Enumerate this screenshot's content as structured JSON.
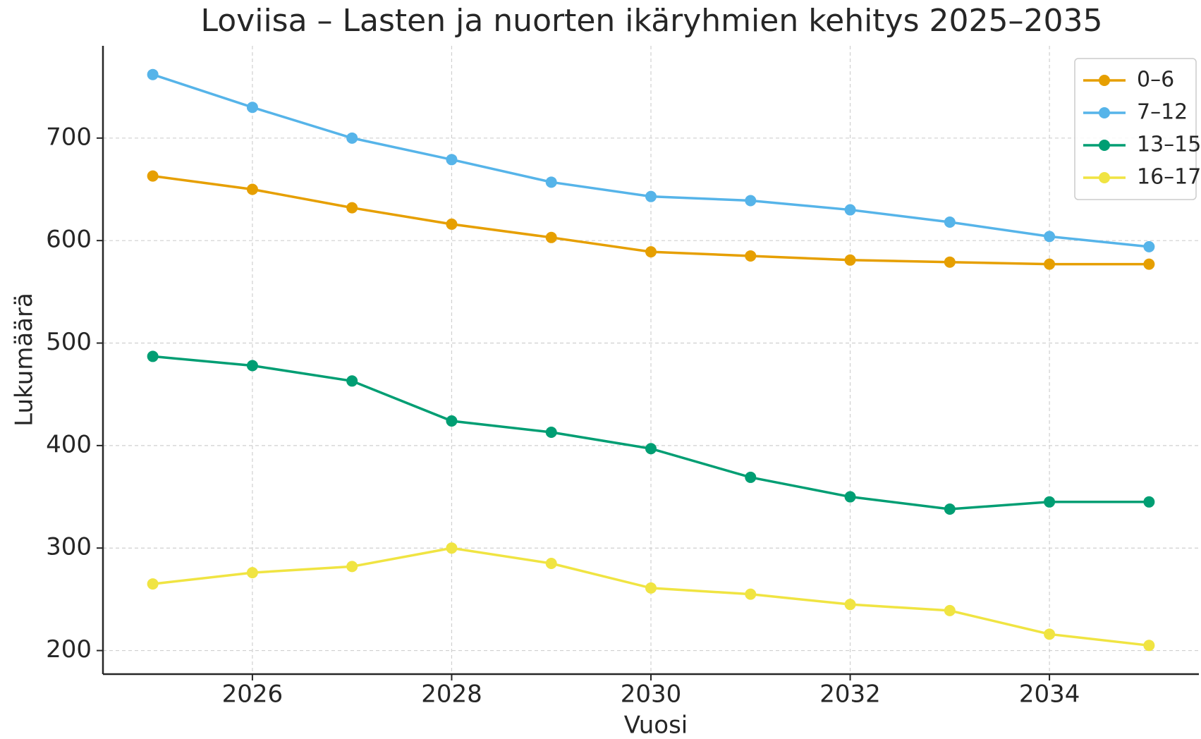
{
  "chart_data": {
    "type": "line",
    "title": "Loviisa – Lasten ja nuorten ikäryhmien kehitys 2025–2035",
    "x_label": "Vuosi",
    "y_label": "Lukumäärä",
    "x": [
      2025,
      2026,
      2027,
      2028,
      2029,
      2030,
      2031,
      2032,
      2033,
      2034,
      2035
    ],
    "series": [
      {
        "name": "0–6",
        "color": "#e69f00",
        "values": [
          663,
          650,
          632,
          616,
          603,
          589,
          585,
          581,
          579,
          577,
          577
        ]
      },
      {
        "name": "7–12",
        "color": "#56b4e9",
        "values": [
          762,
          730,
          700,
          679,
          657,
          643,
          639,
          630,
          618,
          604,
          594
        ]
      },
      {
        "name": "13–15",
        "color": "#009e73",
        "values": [
          487,
          478,
          463,
          424,
          413,
          397,
          369,
          350,
          338,
          345,
          345
        ]
      },
      {
        "name": "16–17",
        "color": "#f0e442",
        "values": [
          265,
          276,
          282,
          300,
          285,
          261,
          255,
          245,
          239,
          216,
          205
        ]
      }
    ],
    "xlim": [
      2024.5,
      2035.5
    ],
    "xticks": [
      2026,
      2028,
      2030,
      2032,
      2034
    ],
    "ylim": [
      177,
      790
    ],
    "yticks": [
      200,
      300,
      400,
      500,
      600,
      700
    ],
    "grid": true,
    "legend": "upper right"
  }
}
